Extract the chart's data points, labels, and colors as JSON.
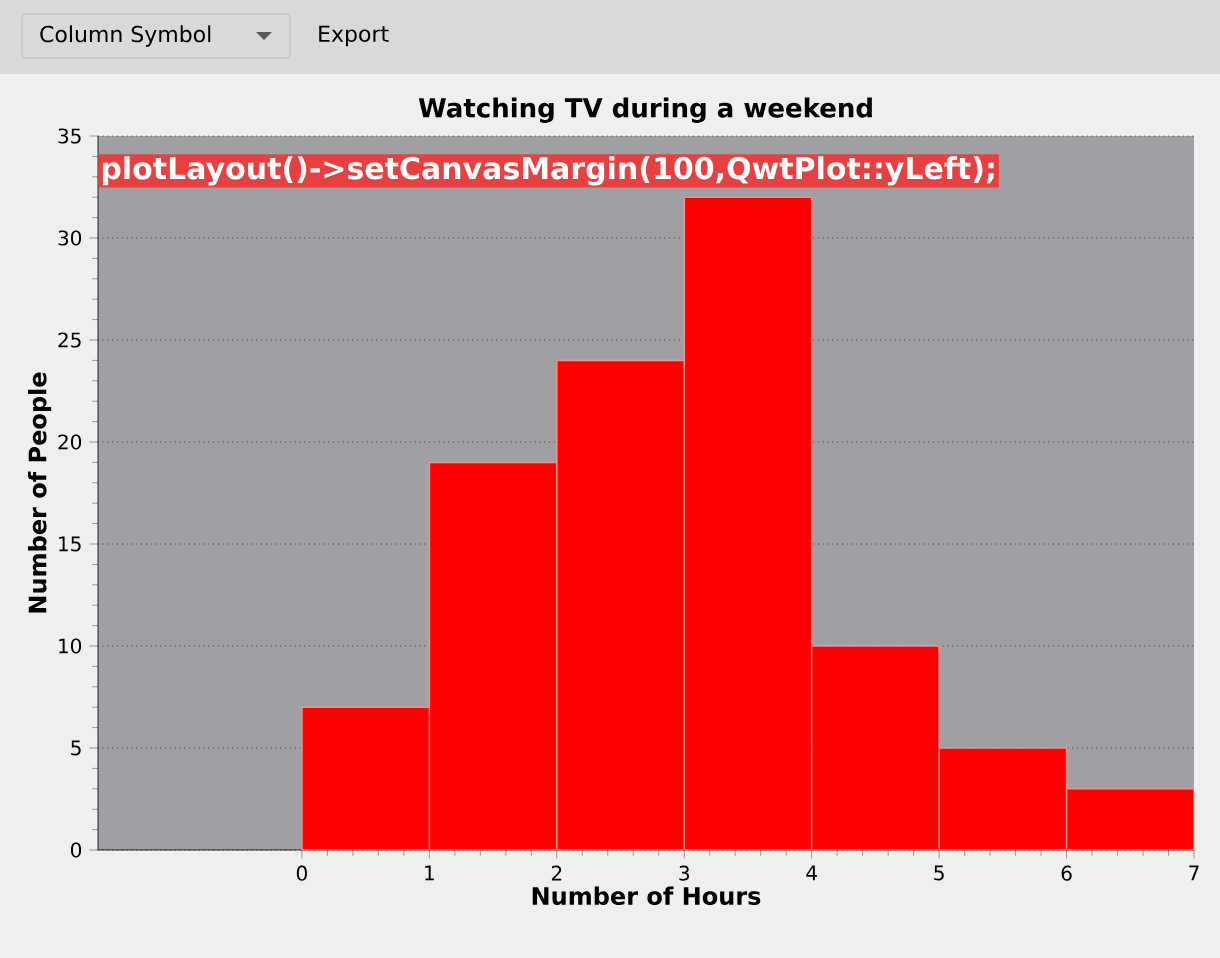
{
  "chart_data": {
    "type": "histogram",
    "title": "Watching TV during a weekend",
    "xlabel": "Number of Hours",
    "ylabel": "Number of People",
    "bins": [
      0,
      1,
      2,
      3,
      4,
      5,
      6,
      7
    ],
    "values": [
      7,
      19,
      24,
      32,
      10,
      5,
      3
    ],
    "color": "#ff0000",
    "xlim": [
      -1.6,
      7
    ],
    "xticks": [
      0,
      1,
      2,
      3,
      4,
      5,
      6,
      7
    ],
    "ylim": [
      0,
      35
    ],
    "yticks": [
      0,
      5,
      10,
      15,
      20,
      25,
      30,
      35
    ],
    "grid": "y",
    "annotations": [
      "Column Symbol",
      "Export",
      "plotLayout()->setCanvasMargin(100,QwtPlot::yLeft);"
    ]
  }
}
